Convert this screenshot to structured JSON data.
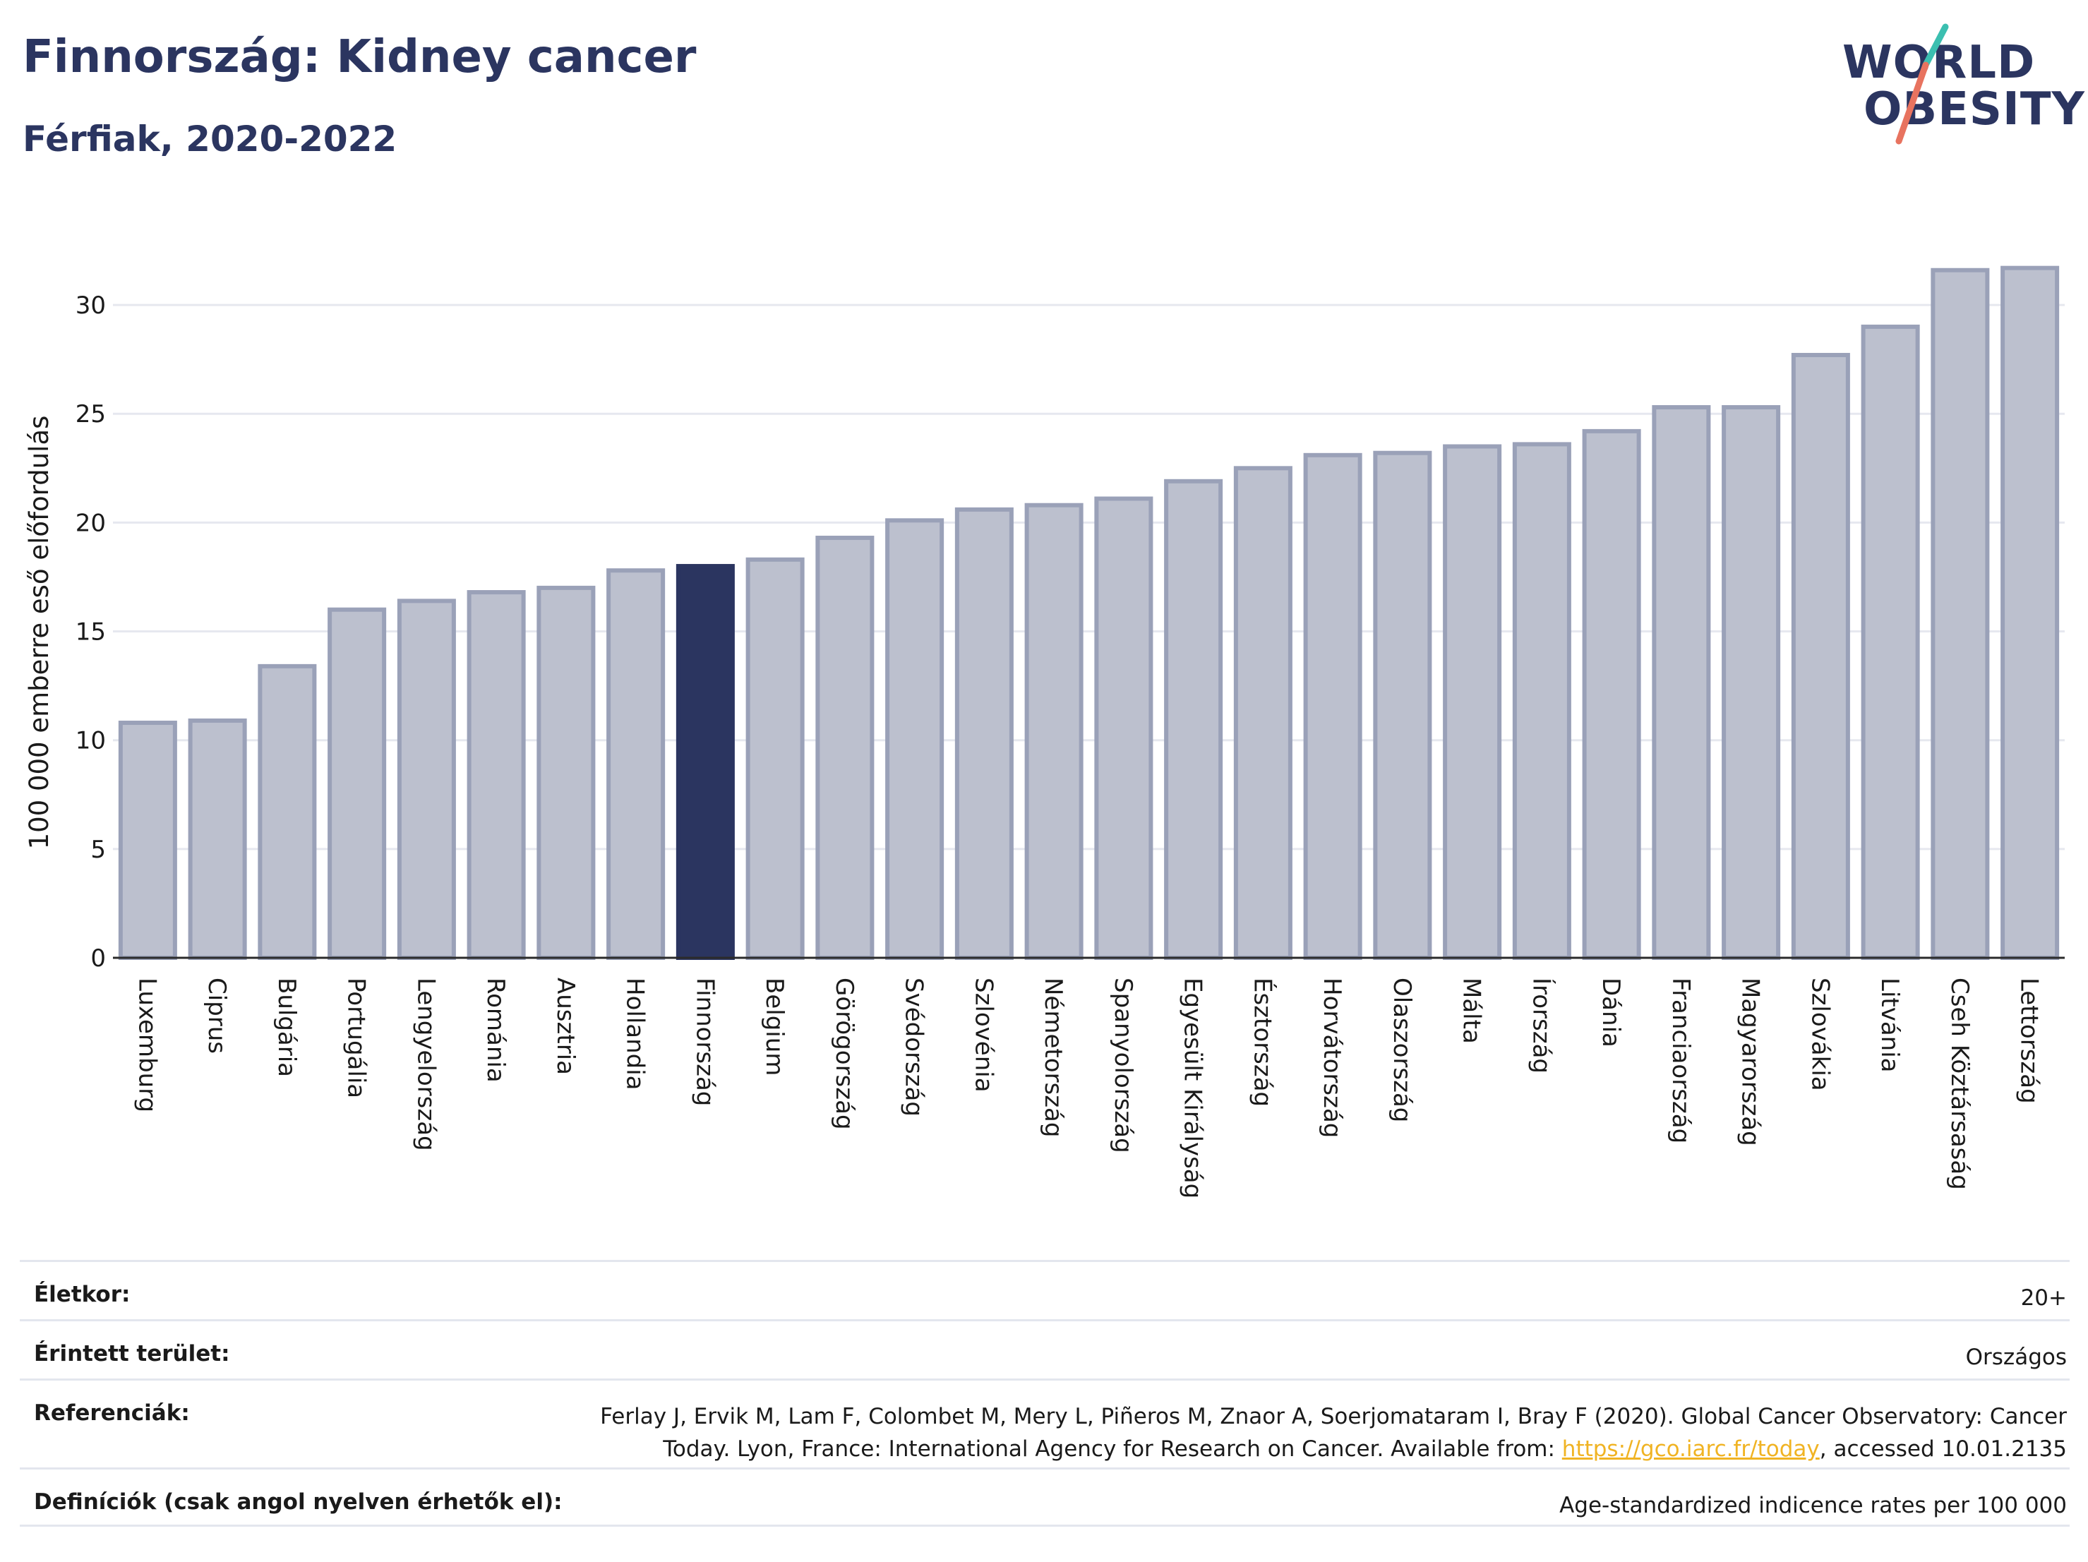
{
  "header": {
    "title": "Finnország: Kidney cancer",
    "subtitle": "Férfiak, 2020-2022"
  },
  "logo": {
    "line1": "WORLD",
    "line2": "OBESITY",
    "colors": {
      "text": "#2b3560",
      "slash_teal": "#3bbfb0",
      "slash_coral": "#e8735f"
    }
  },
  "colors": {
    "bar_default": "#bcc0ce",
    "bar_default_stroke": "#9aa1b8",
    "bar_highlight": "#2b3560",
    "title": "#2b3560",
    "link": "#f0b323"
  },
  "chart_data": {
    "type": "bar",
    "ylabel": "100 000 emberre eső előfordulás",
    "xlabel": "",
    "ylim": [
      0,
      32.5
    ],
    "yticks": [
      0,
      5,
      10,
      15,
      20,
      25,
      30
    ],
    "grid": true,
    "highlight": "Finnország",
    "categories": [
      "Luxemburg",
      "Ciprus",
      "Bulgária",
      "Portugália",
      "Lengyelország",
      "Románia",
      "Ausztria",
      "Hollandia",
      "Finnország",
      "Belgium",
      "Görögország",
      "Svédország",
      "Szlovénia",
      "Németország",
      "Spanyolország",
      "Egyesült Királyság",
      "Észtország",
      "Horvátország",
      "Olaszország",
      "Málta",
      "Írország",
      "Dánia",
      "Franciaország",
      "Magyarország",
      "Szlovákia",
      "Litvánia",
      "Cseh Köztársaság",
      "Lettország"
    ],
    "values": [
      10.8,
      10.9,
      13.4,
      16.0,
      16.4,
      16.8,
      17.0,
      17.8,
      18.0,
      18.3,
      19.3,
      20.1,
      20.6,
      20.8,
      21.1,
      21.9,
      22.5,
      23.1,
      23.2,
      23.5,
      23.6,
      24.2,
      25.3,
      25.3,
      27.7,
      29.0,
      31.6,
      31.7
    ]
  },
  "footer": {
    "age_label": "Életkor:",
    "age_value": "20+",
    "area_label": "Érintett terület:",
    "area_value": "Országos",
    "ref_label": "Referenciák:",
    "ref_line1": "Ferlay J, Ervik M, Lam F, Colombet M, Mery L, Piñeros M, Znaor A, Soerjomataram I, Bray F (2020). Global Cancer Observatory: Cancer",
    "ref_line2_pre": "Today. Lyon, France: International Agency for Research on Cancer. Available from: ",
    "ref_link": "https://gco.iarc.fr/today",
    "ref_line2_post": ", accessed 10.01.2135",
    "def_label": "Definíciók (csak angol nyelven érhetők el):",
    "def_value": "Age-standardized indicence rates per 100 000"
  }
}
